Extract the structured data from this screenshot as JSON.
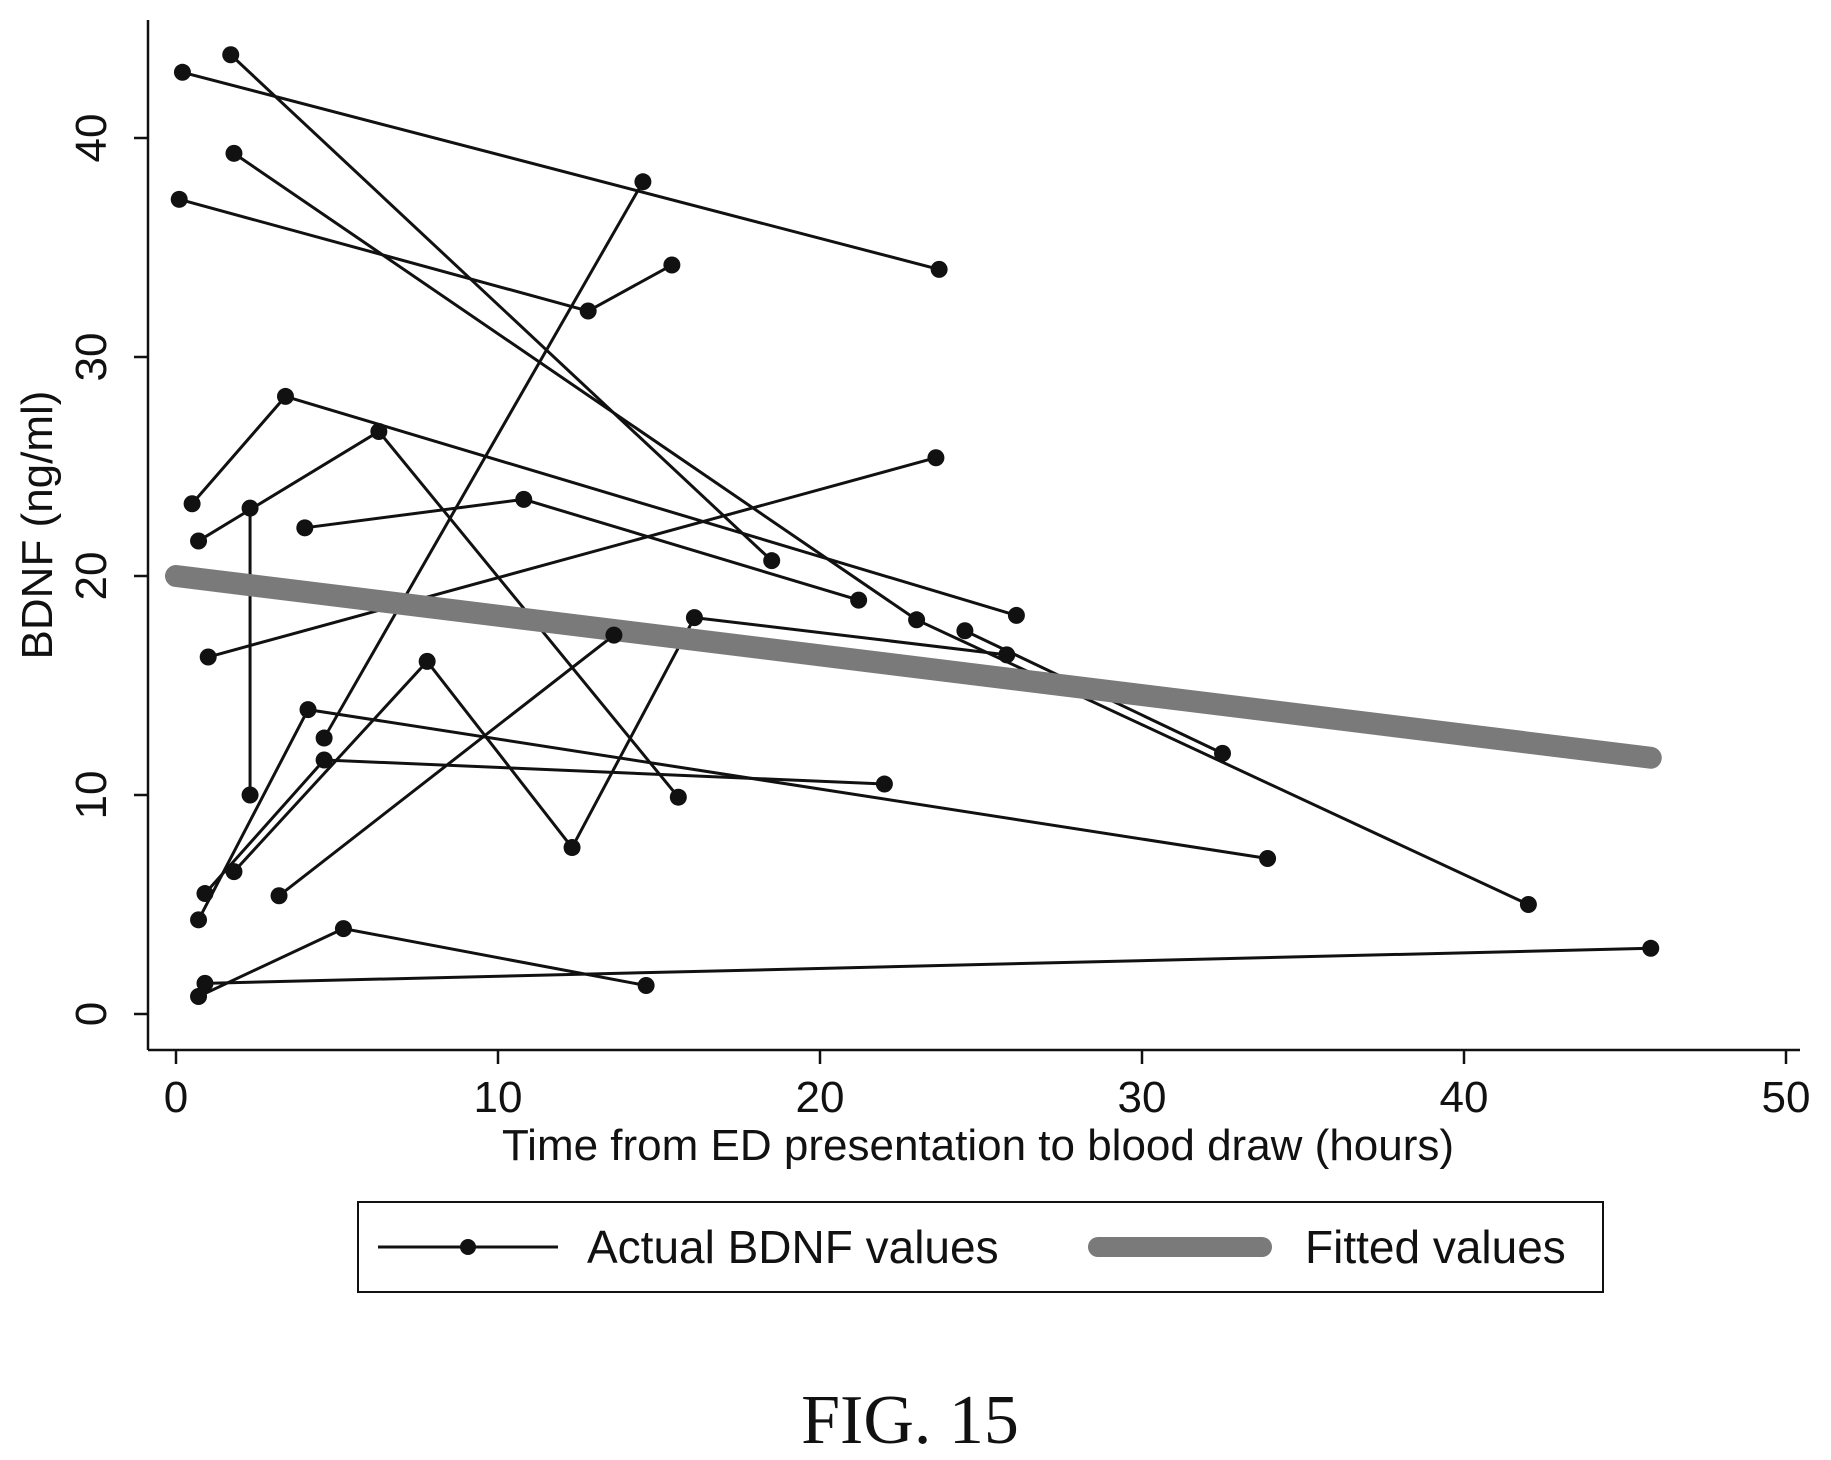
{
  "chart_data": {
    "type": "line",
    "title": "",
    "xlabel": "Time from ED presentation to blood draw (hours)",
    "ylabel": "BDNF (ng/ml)",
    "xlim": [
      0,
      50
    ],
    "ylim": [
      0,
      45
    ],
    "xticks": [
      0,
      10,
      20,
      30,
      40,
      50
    ],
    "yticks": [
      0,
      10,
      20,
      30,
      40
    ],
    "grid": false,
    "legend_position": "bottom",
    "series": [
      {
        "name": "Actual BDNF values",
        "color": "#111111",
        "marker": "circle",
        "segments": [
          [
            [
              0.2,
              43.0
            ],
            [
              23.7,
              34.0
            ]
          ],
          [
            [
              1.7,
              43.8
            ],
            [
              18.5,
              20.7
            ]
          ],
          [
            [
              1.8,
              39.3
            ],
            [
              23.0,
              18.0
            ],
            [
              42.0,
              5.0
            ]
          ],
          [
            [
              0.1,
              37.2
            ],
            [
              12.8,
              32.1
            ],
            [
              15.4,
              34.2
            ]
          ],
          [
            [
              0.5,
              23.3
            ],
            [
              3.4,
              28.2
            ],
            [
              26.1,
              18.2
            ]
          ],
          [
            [
              0.7,
              21.6
            ],
            [
              6.3,
              26.6
            ],
            [
              15.6,
              9.9
            ]
          ],
          [
            [
              2.3,
              23.1
            ],
            [
              2.3,
              10.0
            ]
          ],
          [
            [
              4.0,
              22.2
            ],
            [
              10.8,
              23.5
            ],
            [
              21.2,
              18.9
            ]
          ],
          [
            [
              1.0,
              16.3
            ],
            [
              23.6,
              25.4
            ]
          ],
          [
            [
              4.6,
              12.6
            ],
            [
              14.5,
              38.0
            ]
          ],
          [
            [
              0.9,
              5.5
            ],
            [
              4.6,
              11.6
            ],
            [
              22.0,
              10.5
            ]
          ],
          [
            [
              1.8,
              6.5
            ],
            [
              7.8,
              16.1
            ],
            [
              12.3,
              7.6
            ],
            [
              16.1,
              18.1
            ],
            [
              25.8,
              16.4
            ]
          ],
          [
            [
              3.2,
              5.4
            ],
            [
              13.6,
              17.3
            ]
          ],
          [
            [
              0.7,
              4.3
            ],
            [
              4.1,
              13.9
            ],
            [
              33.9,
              7.1
            ]
          ],
          [
            [
              0.7,
              0.8
            ],
            [
              5.2,
              3.9
            ],
            [
              14.6,
              1.3
            ]
          ],
          [
            [
              0.9,
              1.4
            ],
            [
              45.8,
              3.0
            ]
          ],
          [
            [
              24.5,
              17.5
            ],
            [
              32.5,
              11.9
            ]
          ]
        ]
      },
      {
        "name": "Fitted values",
        "color": "#7a7a7a",
        "x": [
          0.0,
          45.8
        ],
        "y": [
          20.0,
          11.7
        ]
      }
    ]
  },
  "figure_label": "FIG. 15"
}
